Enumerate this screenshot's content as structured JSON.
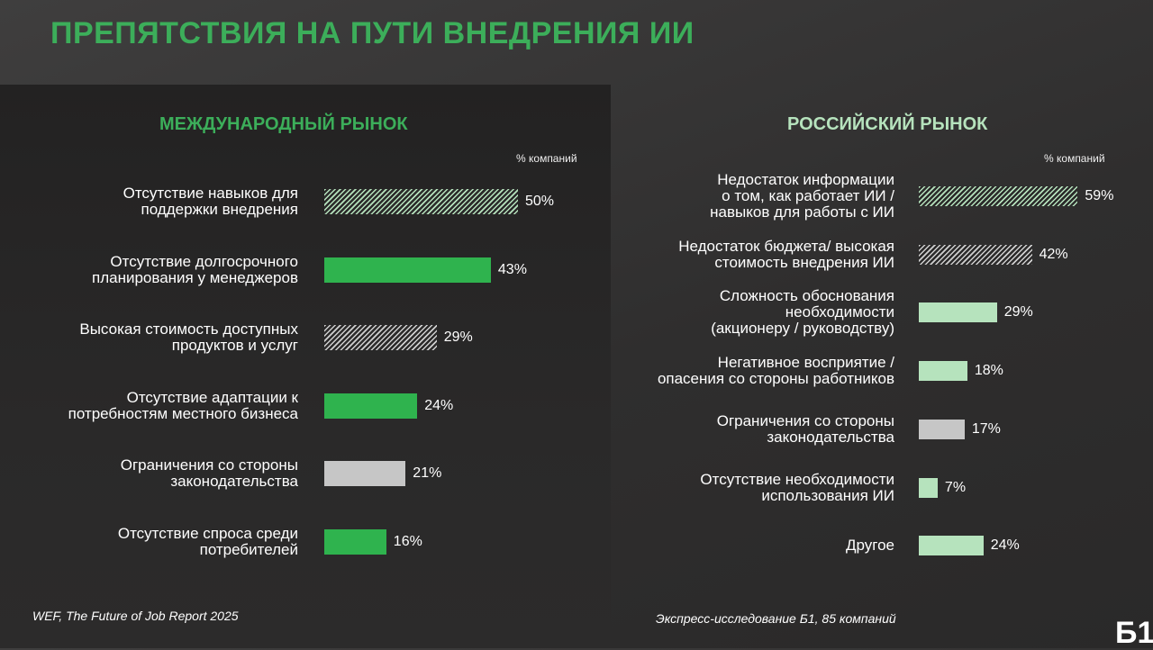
{
  "title": "ПРЕПЯТСТВИЯ НА ПУТИ ВНЕДРЕНИЯ ИИ",
  "logo": "Б1",
  "chart_data": [
    {
      "type": "bar",
      "orientation": "horizontal",
      "title": "МЕЖДУНАРОДНЫЙ РЫНОК",
      "unit_label": "% компаний",
      "source": "WEF, The Future of Job Report 2025",
      "grid": false,
      "rows": [
        {
          "label": "Отсутствие навыков для\nподдержки внедрения",
          "value": 50,
          "value_label": "50%",
          "style": "hatch-green"
        },
        {
          "label": "Отсутствие долгосрочного\nпланирования у менеджеров",
          "value": 43,
          "value_label": "43%",
          "style": "green"
        },
        {
          "label": "Высокая стоимость доступных\nпродуктов и услуг",
          "value": 29,
          "value_label": "29%",
          "style": "hatch-gray"
        },
        {
          "label": "Отсутствие адаптации к\nпотребностям местного бизнеса",
          "value": 24,
          "value_label": "24%",
          "style": "green"
        },
        {
          "label": "Ограничения со стороны\nзаконодательства",
          "value": 21,
          "value_label": "21%",
          "style": "gray"
        },
        {
          "label": "Отсутствие спроса среди\nпотребителей",
          "value": 16,
          "value_label": "16%",
          "style": "green"
        }
      ]
    },
    {
      "type": "bar",
      "orientation": "horizontal",
      "title": "РОССИЙСКИЙ РЫНОК",
      "unit_label": "% компаний",
      "source": "Экспресс-исследование Б1, 85 компаний",
      "grid": false,
      "rows": [
        {
          "label": "Недостаток информации\nо том, как работает ИИ /\nнавыков для работы с ИИ",
          "value": 59,
          "value_label": "59%",
          "style": "hatch-green"
        },
        {
          "label": "Недостаток бюджета/ высокая\nстоимость внедрения ИИ",
          "value": 42,
          "value_label": "42%",
          "style": "hatch-gray"
        },
        {
          "label": "Сложность обоснования\nнеобходимости\n(акционеру / руководству)",
          "value": 29,
          "value_label": "29%",
          "style": "light-green"
        },
        {
          "label": "Негативное восприятие /\nопасения со стороны работников",
          "value": 18,
          "value_label": "18%",
          "style": "light-green"
        },
        {
          "label": "Ограничения со стороны\nзаконодательства",
          "value": 17,
          "value_label": "17%",
          "style": "gray"
        },
        {
          "label": "Отсутствие необходимости\nиспользования ИИ",
          "value": 7,
          "value_label": "7%",
          "style": "light-green"
        },
        {
          "label": "Другое",
          "value": 24,
          "value_label": "24%",
          "style": "light-green"
        }
      ]
    }
  ],
  "colors": {
    "title_green": "#3cae5a",
    "green": "#2fb34e",
    "light_green": "#b6e3bd",
    "gray": "#c6c6c6",
    "hatch_green_fg": "#b6e3bd",
    "hatch_gray_fg": "#cfcfcf"
  }
}
